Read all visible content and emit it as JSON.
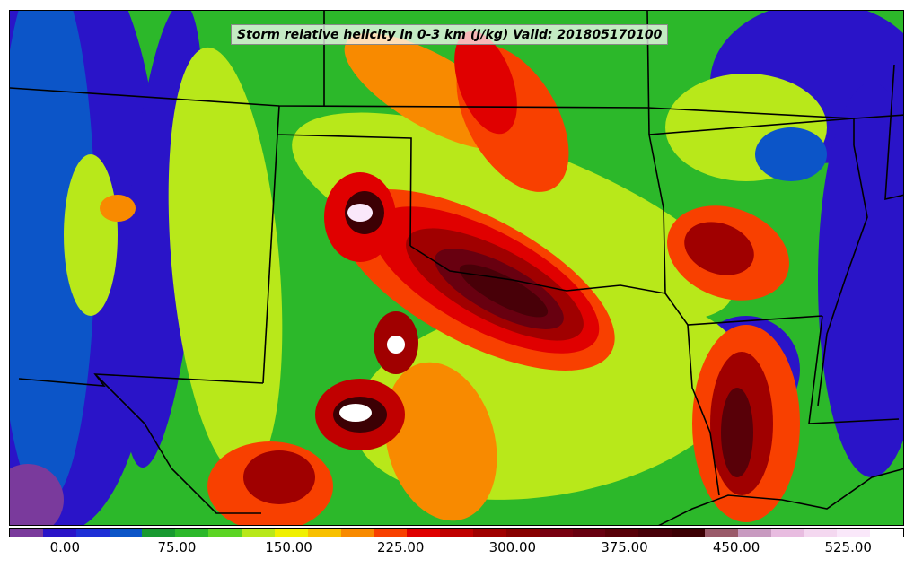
{
  "title": "Storm relative helicity in 0-3 km (J/kg) Valid: 201805170100",
  "colors": {
    "scale": [
      "#7a3a9c",
      "#2a14c8",
      "#1e2fd6",
      "#0c55c8",
      "#189a30",
      "#2cb82a",
      "#5cd424",
      "#b8e81a",
      "#f0f000",
      "#f8c000",
      "#f88a00",
      "#f84000",
      "#e00000",
      "#c00000",
      "#a00000",
      "#880000",
      "#780010",
      "#680010",
      "#580008",
      "#480008",
      "#3c0004",
      "#9a5a6a",
      "#c89ac0",
      "#e8bce0",
      "#f4d8f0",
      "#fae8fa",
      "#ffffff"
    ],
    "border": "#000000"
  },
  "colorbar": {
    "ticks": [
      {
        "label": "0.00",
        "value": 0
      },
      {
        "label": "75.00",
        "value": 75
      },
      {
        "label": "150.00",
        "value": 150
      },
      {
        "label": "225.00",
        "value": 225
      },
      {
        "label": "300.00",
        "value": 300
      },
      {
        "label": "375.00",
        "value": 375
      },
      {
        "label": "450.00",
        "value": 450
      },
      {
        "label": "525.00",
        "value": 525
      }
    ],
    "min": -37.5,
    "max": 562.5
  }
}
